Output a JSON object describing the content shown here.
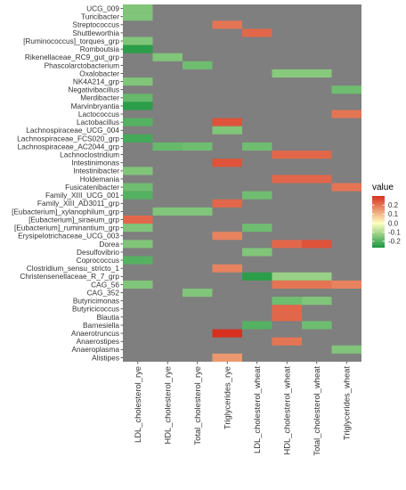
{
  "chart_data": {
    "type": "heatmap",
    "rows": [
      "UCG_009",
      "Turicibacter",
      "Streptococcus",
      "Shuttleworthia",
      "[Ruminococcus]_torques_grp",
      "Romboutsia",
      "Rikenellaceae_RC9_gut_grp",
      "Phascolarctobacterium",
      "Oxalobacter",
      "NK4A214_grp",
      "Negativibacillus",
      "Merdibacter",
      "Marvinbryantia",
      "Lactococcus",
      "Lactobacillus",
      "Lachnospiraceae_UCG_004",
      "Lachnospiraceae_FCS020_grp",
      "Lachnospiraceae_AC2044_grp",
      "Lachnoclostridium",
      "Intestinimonas",
      "Intestinibacter",
      "Holdemania",
      "Fusicatenibacter",
      "Family_XIII_UCG_001",
      "Family_XIII_AD3011_grp",
      "[Eubacterium]_xylanophilum_grp",
      "[Eubacterium]_siraeum_grp",
      "[Eubacterium]_ruminantium_grp",
      "Erysipelotrichaceae_UCG_003",
      "Dorea",
      "Desulfovibrio",
      "Coprococcus",
      "Clostridium_sensu_stricto_1",
      "Christensenellaceae_R_7_grp",
      "CAG_56",
      "CAG_352",
      "Butyricimonas",
      "Butyricicoccus",
      "Blautia",
      "Barnesiella",
      "Anaerotruncus",
      "Anaerostipes",
      "Anaeroplasma",
      "Alistipes"
    ],
    "columns": [
      "LDL_cholesterol_rye",
      "HDL_cholesterol_rye",
      "Total_cholesterol_rye",
      "Triglycerides_rye",
      "LDL_cholesterol_wheat",
      "HDL_cholesterol_wheat",
      "Total_cholesterol_wheat",
      "Triglycerides_wheat"
    ],
    "values": [
      [
        -0.15,
        null,
        null,
        null,
        null,
        null,
        null,
        null
      ],
      [
        -0.15,
        null,
        null,
        null,
        null,
        null,
        null,
        null
      ],
      [
        null,
        null,
        null,
        0.2,
        null,
        null,
        null,
        null
      ],
      [
        null,
        null,
        null,
        null,
        0.22,
        null,
        null,
        null
      ],
      [
        -0.15,
        null,
        null,
        null,
        null,
        null,
        null,
        null
      ],
      [
        -0.25,
        null,
        null,
        null,
        null,
        null,
        null,
        null
      ],
      [
        null,
        -0.15,
        null,
        null,
        null,
        null,
        null,
        null
      ],
      [
        null,
        null,
        -0.17,
        null,
        null,
        null,
        null,
        null
      ],
      [
        null,
        null,
        null,
        null,
        null,
        -0.14,
        -0.14,
        null
      ],
      [
        -0.15,
        null,
        null,
        null,
        null,
        null,
        null,
        null
      ],
      [
        null,
        null,
        null,
        null,
        null,
        null,
        null,
        -0.17
      ],
      [
        -0.18,
        null,
        null,
        null,
        null,
        null,
        null,
        null
      ],
      [
        -0.25,
        null,
        null,
        null,
        null,
        null,
        null,
        null
      ],
      [
        null,
        null,
        null,
        null,
        null,
        null,
        null,
        0.2
      ],
      [
        -0.2,
        null,
        null,
        0.25,
        null,
        null,
        null,
        null
      ],
      [
        null,
        null,
        null,
        -0.15,
        null,
        null,
        null,
        null
      ],
      [
        -0.22,
        null,
        null,
        null,
        null,
        null,
        null,
        null
      ],
      [
        null,
        -0.18,
        -0.17,
        null,
        -0.17,
        null,
        null,
        null
      ],
      [
        null,
        null,
        null,
        null,
        null,
        0.22,
        0.22,
        null
      ],
      [
        null,
        null,
        null,
        0.25,
        null,
        null,
        null,
        null
      ],
      [
        -0.15,
        null,
        null,
        null,
        null,
        null,
        null,
        null
      ],
      [
        null,
        null,
        null,
        null,
        null,
        0.22,
        0.22,
        null
      ],
      [
        -0.17,
        null,
        null,
        null,
        null,
        null,
        null,
        0.2
      ],
      [
        -0.2,
        null,
        null,
        null,
        -0.17,
        null,
        null,
        null
      ],
      [
        null,
        null,
        null,
        0.22,
        null,
        null,
        null,
        null
      ],
      [
        null,
        -0.15,
        -0.15,
        null,
        null,
        null,
        null,
        null
      ],
      [
        0.22,
        null,
        null,
        null,
        null,
        null,
        null,
        null
      ],
      [
        -0.15,
        null,
        null,
        null,
        -0.17,
        null,
        null,
        null
      ],
      [
        null,
        null,
        null,
        0.18,
        null,
        null,
        null,
        null
      ],
      [
        -0.15,
        null,
        null,
        null,
        null,
        0.22,
        0.25,
        null
      ],
      [
        null,
        null,
        null,
        null,
        -0.15,
        null,
        null,
        null
      ],
      [
        -0.2,
        null,
        null,
        null,
        null,
        null,
        null,
        null
      ],
      [
        null,
        null,
        null,
        0.18,
        null,
        null,
        null,
        null
      ],
      [
        null,
        null,
        null,
        null,
        -0.25,
        -0.12,
        -0.12,
        null
      ],
      [
        -0.15,
        null,
        null,
        null,
        null,
        0.2,
        0.2,
        0.18
      ],
      [
        null,
        null,
        -0.15,
        null,
        null,
        null,
        null,
        null
      ],
      [
        null,
        null,
        null,
        null,
        null,
        -0.17,
        -0.15,
        null
      ],
      [
        null,
        null,
        null,
        null,
        null,
        0.22,
        null,
        null
      ],
      [
        null,
        null,
        null,
        null,
        null,
        0.22,
        null,
        null
      ],
      [
        null,
        null,
        null,
        null,
        -0.2,
        null,
        -0.17,
        null
      ],
      [
        null,
        null,
        null,
        0.3,
        null,
        null,
        null,
        null
      ],
      [
        null,
        null,
        null,
        null,
        null,
        0.2,
        null,
        null
      ],
      [
        null,
        null,
        null,
        null,
        null,
        null,
        null,
        -0.15
      ],
      [
        null,
        null,
        null,
        0.15,
        null,
        null,
        null,
        null
      ]
    ],
    "legend": {
      "title": "value",
      "ticks": [
        0.2,
        0.1,
        0.0,
        -0.1,
        -0.2
      ],
      "tick_labels": [
        "0.2",
        "0.1",
        "0.0",
        "-0.1",
        "-0.2"
      ],
      "range": [
        -0.27,
        0.3
      ],
      "placement": "right"
    },
    "colors": {
      "high": "#d7301f",
      "mid": "#ffffbf",
      "low": "#1a9641",
      "missing": "#7f7f7f"
    }
  }
}
